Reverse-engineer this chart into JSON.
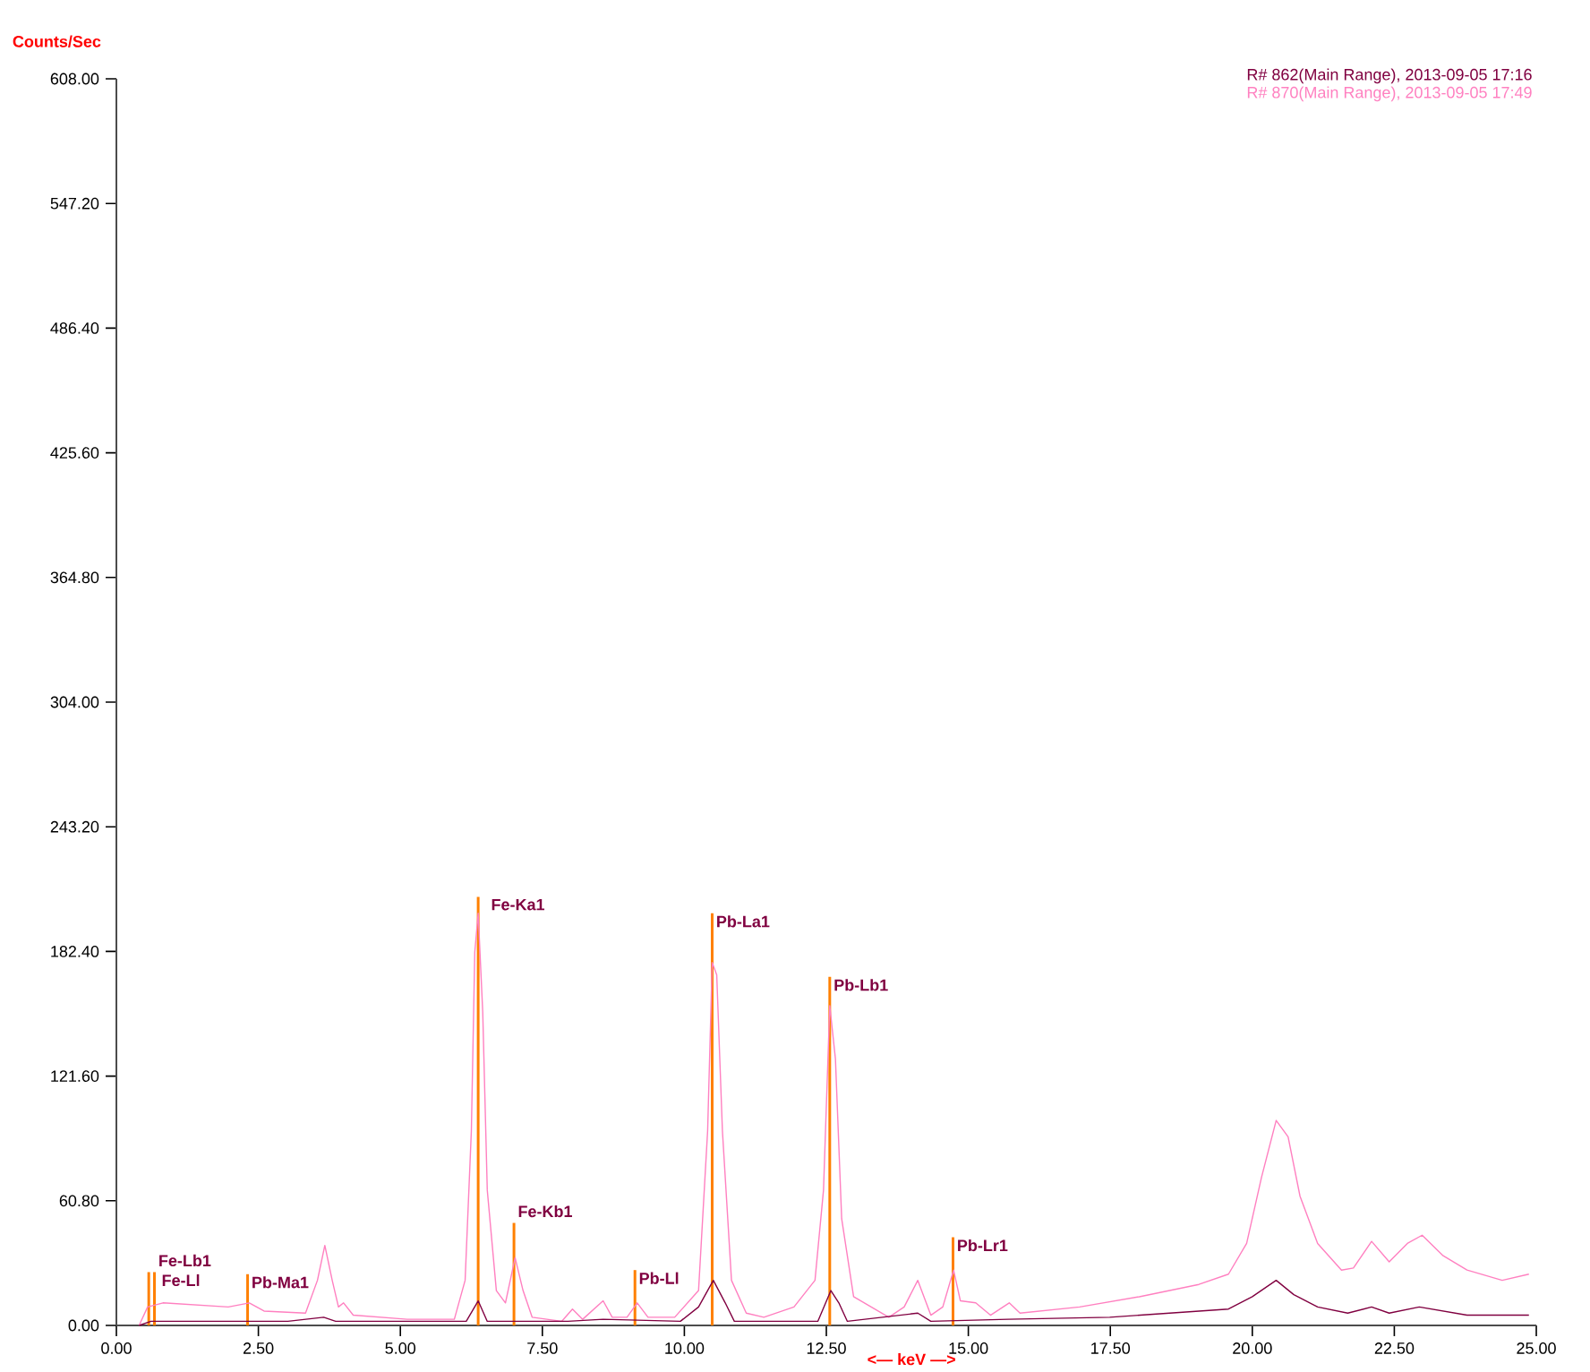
{
  "chart_data": {
    "type": "line",
    "xlabel": "<— keV —>",
    "ylabel": "Counts/Sec",
    "xlim": [
      0,
      25
    ],
    "ylim": [
      0,
      608
    ],
    "xticks": [
      {
        "value": 0,
        "label": "0.00"
      },
      {
        "value": 2.5,
        "label": "2.50"
      },
      {
        "value": 5,
        "label": "5.00"
      },
      {
        "value": 7.5,
        "label": "7.50"
      },
      {
        "value": 10,
        "label": "10.00"
      },
      {
        "value": 12.5,
        "label": "12.50"
      },
      {
        "value": 15,
        "label": "15.00"
      },
      {
        "value": 17.5,
        "label": "17.50"
      },
      {
        "value": 20,
        "label": "20.00"
      },
      {
        "value": 22.5,
        "label": "22.50"
      },
      {
        "value": 25,
        "label": "25.00"
      }
    ],
    "yticks": [
      {
        "value": 0,
        "label": "0.00"
      },
      {
        "value": 60.8,
        "label": "60.80"
      },
      {
        "value": 121.6,
        "label": "121.60"
      },
      {
        "value": 182.4,
        "label": "182.40"
      },
      {
        "value": 243.2,
        "label": "243.20"
      },
      {
        "value": 304,
        "label": "304.00"
      },
      {
        "value": 364.8,
        "label": "364.80"
      },
      {
        "value": 425.6,
        "label": "425.60"
      },
      {
        "value": 486.4,
        "label": "486.40"
      },
      {
        "value": 547.2,
        "label": "547.20"
      },
      {
        "value": 608,
        "label": "608.00"
      }
    ],
    "legend": "top right",
    "grid": false,
    "series": [
      {
        "name": "R# 862(Main Range), 2013-09-05 17:16",
        "color": "#800040",
        "x": [
          0.4,
          0.61,
          3.02,
          3.65,
          3.86,
          6.16,
          6.37,
          6.53,
          7.0,
          7.95,
          8.57,
          9.93,
          10.25,
          10.51,
          10.72,
          10.88,
          12.35,
          12.58,
          12.72,
          12.87,
          14.11,
          14.34,
          15.7,
          17.49,
          19.58,
          20.0,
          20.42,
          20.73,
          21.15,
          21.68,
          22.1,
          22.41,
          22.94,
          23.78,
          24.87
        ],
        "values": [
          0,
          2,
          2,
          4,
          2,
          2,
          12,
          2,
          2,
          2,
          3,
          2,
          9,
          22,
          11,
          2,
          2,
          17,
          11,
          2,
          6,
          2,
          3,
          4,
          8,
          14,
          22,
          15,
          9,
          6,
          9,
          6,
          9,
          5,
          5
        ]
      },
      {
        "name": "R# 870(Main Range), 2013-09-05 17:49",
        "color": "#ff80c0",
        "x": [
          0.4,
          0.55,
          0.82,
          1.97,
          2.34,
          2.6,
          3.33,
          3.54,
          3.67,
          3.8,
          3.91,
          4.0,
          4.17,
          5.12,
          5.95,
          6.14,
          6.25,
          6.31,
          6.37,
          6.45,
          6.53,
          6.69,
          6.85,
          7.02,
          7.16,
          7.32,
          7.84,
          8.03,
          8.21,
          8.57,
          8.73,
          8.99,
          9.17,
          9.36,
          9.83,
          10.25,
          10.41,
          10.49,
          10.57,
          10.67,
          10.83,
          11.09,
          11.4,
          11.93,
          12.3,
          12.45,
          12.56,
          12.66,
          12.77,
          12.98,
          13.6,
          13.87,
          14.11,
          14.34,
          14.55,
          14.74,
          14.86,
          15.13,
          15.39,
          15.72,
          15.91,
          16.96,
          18.01,
          19.06,
          19.58,
          19.9,
          20.16,
          20.42,
          20.63,
          20.84,
          21.15,
          21.57,
          21.78,
          22.1,
          22.41,
          22.73,
          22.99,
          23.36,
          23.78,
          24.4,
          24.87
        ],
        "values": [
          0,
          9,
          11,
          9,
          11,
          7,
          6,
          22,
          39,
          22,
          9,
          11,
          5,
          3,
          3,
          22,
          95,
          182,
          201,
          153,
          66,
          17,
          11,
          33,
          17,
          4,
          2,
          8,
          3,
          12,
          4,
          4,
          11,
          4,
          4,
          17,
          95,
          177,
          171,
          95,
          22,
          6,
          4,
          9,
          22,
          66,
          156,
          130,
          52,
          14,
          4,
          9,
          22,
          5,
          9,
          27,
          12,
          11,
          5,
          11,
          6,
          9,
          14,
          20,
          25,
          40,
          72,
          100,
          92,
          63,
          40,
          27,
          28,
          41,
          31,
          40,
          44,
          34,
          27,
          22,
          25
        ]
      },
      {
        "color": "#ff8000",
        "type": "bar",
        "x": [
          0.57,
          0.67,
          2.31,
          6.37,
          7.0,
          9.13,
          10.49,
          12.56,
          14.73
        ],
        "values": [
          26,
          26,
          25,
          209,
          50,
          27,
          201,
          170,
          43
        ]
      }
    ],
    "annotations": [
      {
        "text": "Fe-Ll",
        "x": 0.57,
        "y": 26
      },
      {
        "text": "Fe-Lb1",
        "x": 0.67,
        "y": 26
      },
      {
        "text": "Pb-Ma1",
        "x": 2.31,
        "y": 25
      },
      {
        "text": "Fe-Ka1",
        "x": 6.37,
        "y": 209
      },
      {
        "text": "Fe-Kb1",
        "x": 7.0,
        "y": 50
      },
      {
        "text": "Pb-Ll",
        "x": 9.13,
        "y": 27
      },
      {
        "text": "Pb-La1",
        "x": 10.49,
        "y": 201
      },
      {
        "text": "Pb-Lb1",
        "x": 12.56,
        "y": 170
      },
      {
        "text": "Pb-Lr1",
        "x": 14.73,
        "y": 43
      }
    ]
  }
}
